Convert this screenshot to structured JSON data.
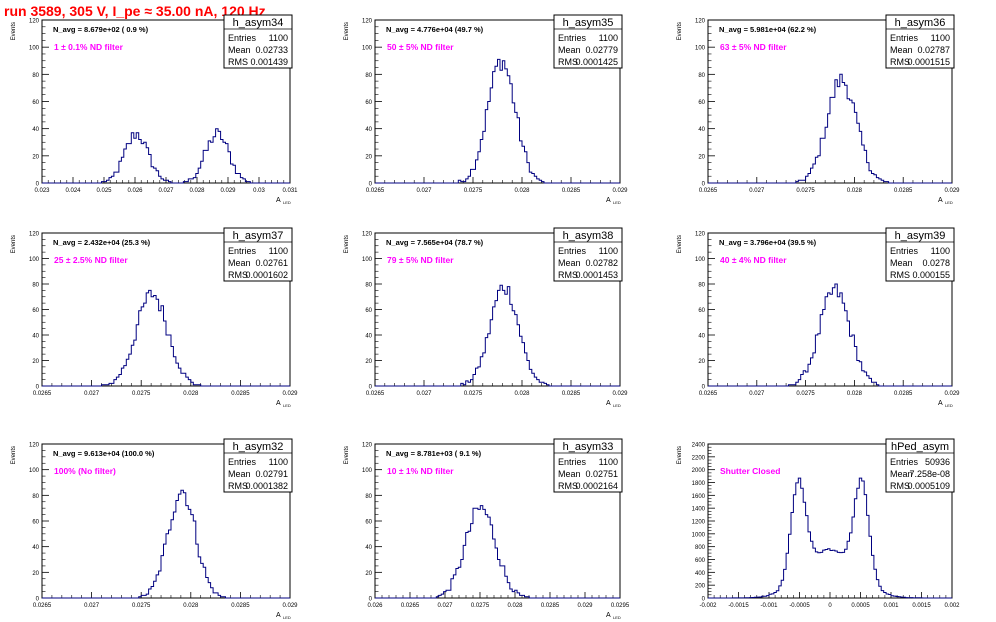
{
  "header": {
    "title": "run 3589,   305 V, I_pe ≈ 35.00 nA, 120 Hz",
    "title_color": "#ff0000"
  },
  "colors": {
    "histogram_line": "#000080",
    "annotation": "#ff00ff",
    "axis": "#000000"
  },
  "chart_data": [
    {
      "type": "histogram",
      "name": "h_asym34",
      "stats": {
        "entries": "1100",
        "mean": "0.02733",
        "rms": "0.001439"
      },
      "stats_labels": {
        "entries": "Entries",
        "mean": "Mean",
        "rms": "RMS"
      },
      "navg_text": "N_avg = 8.679e+02 ( 0.9 %)",
      "filter_text": "1 ± 0.1% ND filter",
      "ylabel": "Events",
      "xlabel": "A",
      "xlabel_sub": "LED",
      "xlim": [
        0.023,
        0.031
      ],
      "ylim": [
        0,
        120
      ],
      "xticks": [
        0.023,
        0.024,
        0.025,
        0.026,
        0.027,
        0.028,
        0.029,
        0.03,
        0.031
      ],
      "xtick_labels": [
        "0.023",
        "0.024",
        "0.025",
        "0.026",
        "0.027",
        "0.028",
        "0.029",
        "0.03",
        "0.031"
      ],
      "yticks": [
        0,
        20,
        40,
        60,
        80,
        100,
        120
      ],
      "ytick_labels": [
        "0",
        "20",
        "40",
        "60",
        "80",
        "100",
        "120"
      ],
      "peaks": [
        {
          "mu": 0.02605,
          "sigma": 0.00038,
          "amp": 36
        },
        {
          "mu": 0.02865,
          "sigma": 0.00038,
          "amp": 36
        }
      ]
    },
    {
      "type": "histogram",
      "name": "h_asym35",
      "stats": {
        "entries": "1100",
        "mean": "0.02779",
        "rms": "0.0001425"
      },
      "stats_labels": {
        "entries": "Entries",
        "mean": "Mean",
        "rms": "RMS"
      },
      "navg_text": "N_avg = 4.776e+04 (49.7 %)",
      "filter_text": "50 ± 5% ND filter",
      "ylabel": "Events",
      "xlabel": "A",
      "xlabel_sub": "LED",
      "xlim": [
        0.0265,
        0.029
      ],
      "ylim": [
        0,
        120
      ],
      "xticks": [
        0.0265,
        0.027,
        0.0275,
        0.028,
        0.0285,
        0.029
      ],
      "xtick_labels": [
        "0.0265",
        "0.027",
        "0.0275",
        "0.028",
        "0.0285",
        "0.029"
      ],
      "yticks": [
        0,
        20,
        40,
        60,
        80,
        100,
        120
      ],
      "ytick_labels": [
        "0",
        "20",
        "40",
        "60",
        "80",
        "100",
        "120"
      ],
      "peaks": [
        {
          "mu": 0.02779,
          "sigma": 0.000142,
          "amp": 90
        }
      ]
    },
    {
      "type": "histogram",
      "name": "h_asym36",
      "stats": {
        "entries": "1100",
        "mean": "0.02787",
        "rms": "0.0001515"
      },
      "stats_labels": {
        "entries": "Entries",
        "mean": "Mean",
        "rms": "RMS"
      },
      "navg_text": "N_avg = 5.981e+04 (62.2 %)",
      "filter_text": "63 ± 5% ND filter",
      "ylabel": "Events",
      "xlabel": "A",
      "xlabel_sub": "LED",
      "xlim": [
        0.0265,
        0.029
      ],
      "ylim": [
        0,
        120
      ],
      "xticks": [
        0.0265,
        0.027,
        0.0275,
        0.028,
        0.0285,
        0.029
      ],
      "xtick_labels": [
        "0.0265",
        "0.027",
        "0.0275",
        "0.028",
        "0.0285",
        "0.029"
      ],
      "yticks": [
        0,
        20,
        40,
        60,
        80,
        100,
        120
      ],
      "ytick_labels": [
        "0",
        "20",
        "40",
        "60",
        "80",
        "100",
        "120"
      ],
      "peaks": [
        {
          "mu": 0.02787,
          "sigma": 0.000151,
          "amp": 76
        }
      ]
    },
    {
      "type": "histogram",
      "name": "h_asym37",
      "stats": {
        "entries": "1100",
        "mean": "0.02761",
        "rms": "0.0001602"
      },
      "stats_labels": {
        "entries": "Entries",
        "mean": "Mean",
        "rms": "RMS"
      },
      "navg_text": "N_avg = 2.432e+04 (25.3 %)",
      "filter_text": "25 ± 2.5% ND filter",
      "ylabel": "Events",
      "xlabel": "A",
      "xlabel_sub": "LED",
      "xlim": [
        0.0265,
        0.029
      ],
      "ylim": [
        0,
        120
      ],
      "xticks": [
        0.0265,
        0.027,
        0.0275,
        0.028,
        0.0285,
        0.029
      ],
      "xtick_labels": [
        "0.0265",
        "0.027",
        "0.0275",
        "0.028",
        "0.0285",
        "0.029"
      ],
      "yticks": [
        0,
        20,
        40,
        60,
        80,
        100,
        120
      ],
      "ytick_labels": [
        "0",
        "20",
        "40",
        "60",
        "80",
        "100",
        "120"
      ],
      "peaks": [
        {
          "mu": 0.02761,
          "sigma": 0.00016,
          "amp": 72
        }
      ]
    },
    {
      "type": "histogram",
      "name": "h_asym38",
      "stats": {
        "entries": "1100",
        "mean": "0.02782",
        "rms": "0.0001453"
      },
      "stats_labels": {
        "entries": "Entries",
        "mean": "Mean",
        "rms": "RMS"
      },
      "navg_text": "N_avg = 7.565e+04 (78.7 %)",
      "filter_text": "79 ± 5% ND filter",
      "ylabel": "Events",
      "xlabel": "A",
      "xlabel_sub": "LED",
      "xlim": [
        0.0265,
        0.029
      ],
      "ylim": [
        0,
        120
      ],
      "xticks": [
        0.0265,
        0.027,
        0.0275,
        0.028,
        0.0285,
        0.029
      ],
      "xtick_labels": [
        "0.0265",
        "0.027",
        "0.0275",
        "0.028",
        "0.0285",
        "0.029"
      ],
      "yticks": [
        0,
        20,
        40,
        60,
        80,
        100,
        120
      ],
      "ytick_labels": [
        "0",
        "20",
        "40",
        "60",
        "80",
        "100",
        "120"
      ],
      "peaks": [
        {
          "mu": 0.02782,
          "sigma": 0.000145,
          "amp": 78
        }
      ]
    },
    {
      "type": "histogram",
      "name": "h_asym39",
      "stats": {
        "entries": "1100",
        "mean": "0.0278",
        "rms": "0.000155"
      },
      "stats_labels": {
        "entries": "Entries",
        "mean": "Mean",
        "rms": "RMS"
      },
      "navg_text": "N_avg = 3.796e+04 (39.5 %)",
      "filter_text": "40 ± 4% ND filter",
      "ylabel": "Events",
      "xlabel": "A",
      "xlabel_sub": "LED",
      "xlim": [
        0.0265,
        0.029
      ],
      "ylim": [
        0,
        120
      ],
      "xticks": [
        0.0265,
        0.027,
        0.0275,
        0.028,
        0.0285,
        0.029
      ],
      "xtick_labels": [
        "0.0265",
        "0.027",
        "0.0275",
        "0.028",
        "0.0285",
        "0.029"
      ],
      "yticks": [
        0,
        20,
        40,
        60,
        80,
        100,
        120
      ],
      "ytick_labels": [
        "0",
        "20",
        "40",
        "60",
        "80",
        "100",
        "120"
      ],
      "peaks": [
        {
          "mu": 0.0278,
          "sigma": 0.000155,
          "amp": 75
        }
      ]
    },
    {
      "type": "histogram",
      "name": "h_asym32",
      "stats": {
        "entries": "1100",
        "mean": "0.02791",
        "rms": "0.0001382"
      },
      "stats_labels": {
        "entries": "Entries",
        "mean": "Mean",
        "rms": "RMS"
      },
      "navg_text": "N_avg = 9.613e+04 (100.0 %)",
      "filter_text": "100% (No filter)",
      "ylabel": "Events",
      "xlabel": "A",
      "xlabel_sub": "LED",
      "xlim": [
        0.0265,
        0.029
      ],
      "ylim": [
        0,
        120
      ],
      "xticks": [
        0.0265,
        0.027,
        0.0275,
        0.028,
        0.0285,
        0.029
      ],
      "xtick_labels": [
        "0.0265",
        "0.027",
        "0.0275",
        "0.028",
        "0.0285",
        "0.029"
      ],
      "yticks": [
        0,
        20,
        40,
        60,
        80,
        100,
        120
      ],
      "ytick_labels": [
        "0",
        "20",
        "40",
        "60",
        "80",
        "100",
        "120"
      ],
      "peaks": [
        {
          "mu": 0.02791,
          "sigma": 0.000138,
          "amp": 84
        }
      ]
    },
    {
      "type": "histogram",
      "name": "h_asym33",
      "stats": {
        "entries": "1100",
        "mean": "0.02751",
        "rms": "0.0002164"
      },
      "stats_labels": {
        "entries": "Entries",
        "mean": "Mean",
        "rms": "RMS"
      },
      "navg_text": "N_avg = 8.781e+03 ( 9.1 %)",
      "filter_text": "10 ± 1% ND filter",
      "ylabel": "Events",
      "xlabel": "A",
      "xlabel_sub": "LED",
      "xlim": [
        0.026,
        0.0295
      ],
      "ylim": [
        0,
        120
      ],
      "xticks": [
        0.026,
        0.0265,
        0.027,
        0.0275,
        0.028,
        0.0285,
        0.029,
        0.0295
      ],
      "xtick_labels": [
        "0.026",
        "0.0265",
        "0.027",
        "0.0275",
        "0.028",
        "0.0285",
        "0.029",
        "0.0295"
      ],
      "yticks": [
        0,
        20,
        40,
        60,
        80,
        100,
        120
      ],
      "ytick_labels": [
        "0",
        "20",
        "40",
        "60",
        "80",
        "100",
        "120"
      ],
      "peaks": [
        {
          "mu": 0.02751,
          "sigma": 0.000216,
          "amp": 70
        }
      ]
    },
    {
      "type": "histogram",
      "name": "hPed_asym",
      "stats": {
        "entries": "50936",
        "mean": "7.258e-08",
        "rms": "0.0005109"
      },
      "stats_labels": {
        "entries": "Entries",
        "mean": "Mean",
        "rms": "RMS"
      },
      "navg_text": "",
      "filter_text": "Shutter Closed",
      "ylabel": "Events",
      "xlabel": "",
      "xlabel_sub": "",
      "xlim": [
        -0.002,
        0.002
      ],
      "ylim": [
        0,
        2400
      ],
      "xticks": [
        -0.002,
        -0.0015,
        -0.001,
        -0.0005,
        0,
        0.0005,
        0.001,
        0.0015,
        0.002
      ],
      "xtick_labels": [
        "-0.002",
        "-0.0015",
        "-0.001",
        "-0.0005",
        "0",
        "0.0005",
        "0.001",
        "0.0015",
        "0.002"
      ],
      "yticks": [
        0,
        200,
        400,
        600,
        800,
        1000,
        1200,
        1400,
        1600,
        1800,
        2000,
        2200,
        2400
      ],
      "ytick_labels": [
        "0",
        "200",
        "400",
        "600",
        "800",
        "1000",
        "1200",
        "1400",
        "1600",
        "1800",
        "2000",
        "2200",
        "2400"
      ],
      "peaks": [
        {
          "mu": -0.00052,
          "sigma": 0.00012,
          "amp": 1500
        },
        {
          "mu": 0.00052,
          "sigma": 0.00012,
          "amp": 1500
        },
        {
          "mu": 0.0,
          "sigma": 0.00042,
          "amp": 760
        }
      ]
    }
  ]
}
